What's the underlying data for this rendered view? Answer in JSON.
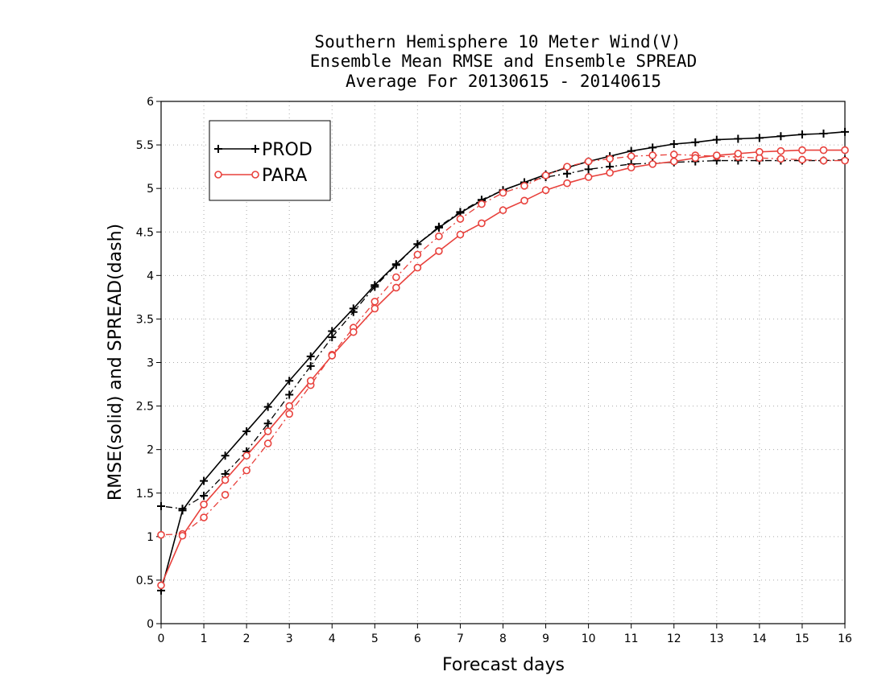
{
  "chart_data": {
    "type": "line",
    "title_lines": [
      "Southern Hemisphere 10 Meter Wind(V)",
      "Ensemble Mean RMSE and Ensemble SPREAD",
      "Average For 20130615 - 20140615"
    ],
    "xlabel": "Forecast days",
    "ylabel": "RMSE(solid) and SPREAD(dash)",
    "xlim": [
      0,
      16
    ],
    "ylim": [
      0,
      6
    ],
    "xticks": [
      "0",
      "1",
      "2",
      "3",
      "4",
      "5",
      "6",
      "7",
      "8",
      "9",
      "10",
      "11",
      "12",
      "13",
      "14",
      "15",
      "16"
    ],
    "yticks": [
      "0",
      "0.5",
      "1",
      "1.5",
      "2",
      "2.5",
      "3",
      "3.5",
      "4",
      "4.5",
      "5",
      "5.5",
      "6"
    ],
    "grid": true,
    "legend_position": "top-left",
    "x": [
      0,
      0.5,
      1,
      1.5,
      2,
      2.5,
      3,
      3.5,
      4,
      4.5,
      5,
      5.5,
      6,
      6.5,
      7,
      7.5,
      8,
      8.5,
      9,
      9.5,
      10,
      10.5,
      11,
      11.5,
      12,
      12.5,
      13,
      13.5,
      14,
      14.5,
      15,
      15.5,
      16
    ],
    "series": [
      {
        "name": "PROD",
        "color": "#000000",
        "marker": "plus",
        "rmse": [
          0.38,
          1.3,
          1.64,
          1.93,
          2.21,
          2.49,
          2.79,
          3.07,
          3.36,
          3.62,
          3.89,
          4.13,
          4.36,
          4.55,
          4.72,
          4.86,
          4.98,
          5.07,
          5.16,
          5.24,
          5.31,
          5.37,
          5.43,
          5.47,
          5.51,
          5.53,
          5.56,
          5.57,
          5.58,
          5.6,
          5.62,
          5.63,
          5.65
        ],
        "spread": [
          1.35,
          1.32,
          1.47,
          1.72,
          1.98,
          2.3,
          2.63,
          2.96,
          3.29,
          3.58,
          3.87,
          4.12,
          4.36,
          4.56,
          4.73,
          4.87,
          4.98,
          5.07,
          5.13,
          5.17,
          5.22,
          5.25,
          5.28,
          5.29,
          5.3,
          5.31,
          5.32,
          5.32,
          5.32,
          5.32,
          5.32,
          5.32,
          5.33
        ]
      },
      {
        "name": "PARA",
        "color": "#e8413c",
        "marker": "circle",
        "rmse": [
          0.44,
          1.01,
          1.37,
          1.65,
          1.93,
          2.21,
          2.5,
          2.79,
          3.08,
          3.35,
          3.62,
          3.86,
          4.09,
          4.28,
          4.47,
          4.6,
          4.75,
          4.86,
          4.98,
          5.06,
          5.13,
          5.18,
          5.24,
          5.28,
          5.31,
          5.35,
          5.38,
          5.4,
          5.42,
          5.43,
          5.44,
          5.44,
          5.44
        ],
        "spread": [
          1.02,
          1.03,
          1.22,
          1.48,
          1.76,
          2.07,
          2.41,
          2.74,
          3.09,
          3.4,
          3.7,
          3.98,
          4.24,
          4.45,
          4.65,
          4.82,
          4.95,
          5.03,
          5.15,
          5.25,
          5.31,
          5.34,
          5.37,
          5.38,
          5.39,
          5.38,
          5.37,
          5.36,
          5.35,
          5.34,
          5.33,
          5.32,
          5.32
        ]
      }
    ]
  }
}
